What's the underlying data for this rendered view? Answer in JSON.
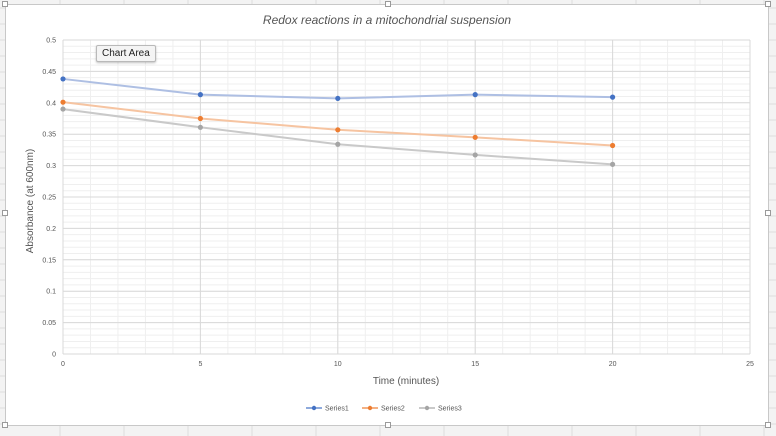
{
  "colors": {
    "series1": "#4472c4",
    "series2": "#ed7d31",
    "series3": "#a5a5a5",
    "series1_line": "#aebfe3",
    "series2_line": "#f6c4a1",
    "series3_line": "#c9c9c9",
    "grid": "#d9d9d9"
  },
  "tooltip": {
    "label": "Chart Area"
  },
  "chart_data": {
    "type": "line",
    "title": "Redox reactions in a mitochondrial suspension",
    "xlabel": "Time (minutes)",
    "ylabel": "Absorbance (at 600nm)",
    "xlim": [
      0,
      25
    ],
    "ylim": [
      0,
      0.5
    ],
    "x_ticks": [
      "0",
      "5",
      "10",
      "15",
      "20",
      "25"
    ],
    "y_ticks": [
      "0",
      "0.05",
      "0.1",
      "0.15",
      "0.2",
      "0.25",
      "0.3",
      "0.35",
      "0.4",
      "0.45",
      "0.5"
    ],
    "x": [
      0,
      5,
      10,
      15,
      20
    ],
    "grid": true,
    "legend_position": "bottom",
    "series": [
      {
        "name": "Series1",
        "values": [
          0.438,
          0.413,
          0.407,
          0.413,
          0.409
        ]
      },
      {
        "name": "Series2",
        "values": [
          0.401,
          0.375,
          0.357,
          0.345,
          0.332
        ]
      },
      {
        "name": "Series3",
        "values": [
          0.39,
          0.361,
          0.334,
          0.317,
          0.302
        ]
      }
    ]
  }
}
